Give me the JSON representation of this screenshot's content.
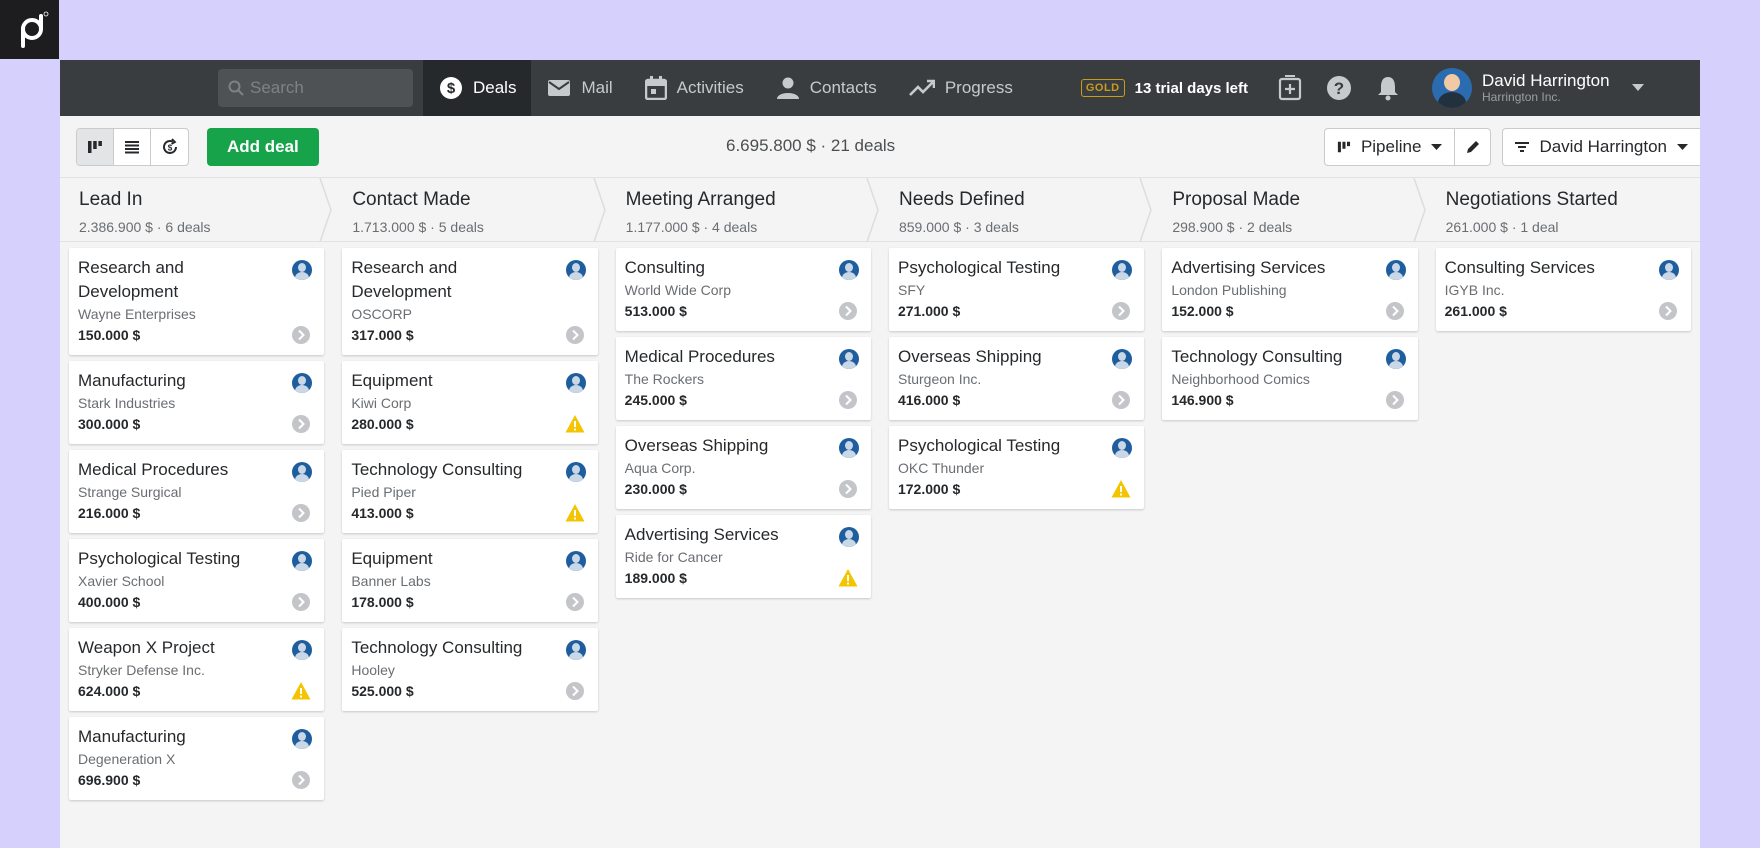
{
  "nav": {
    "search_placeholder": "Search",
    "tabs": [
      {
        "label": "Deals",
        "icon": "dollar-icon"
      },
      {
        "label": "Mail",
        "icon": "mail-icon"
      },
      {
        "label": "Activities",
        "icon": "calendar-icon"
      },
      {
        "label": "Contacts",
        "icon": "person-icon"
      },
      {
        "label": "Progress",
        "icon": "trend-icon"
      }
    ],
    "gold_badge": "GOLD",
    "trial_text": "13 trial days left",
    "user_name": "David Harrington",
    "user_company": "Harrington Inc."
  },
  "toolbar": {
    "add_deal": "Add deal",
    "summary": "6.695.800 $ · 21 deals",
    "pipeline_label": "Pipeline",
    "owner_filter": "David Harrington"
  },
  "colors": {
    "accent_green": "#17a34a",
    "nav_bg": "#3a3d40",
    "warning": "#f5c400",
    "background": "#d5d0fc"
  },
  "stages": [
    {
      "name": "Lead In",
      "summary": "2.386.900 $ · 6 deals",
      "deals": [
        {
          "title": "Research and Development",
          "org": "Wayne Enterprises",
          "value": "150.000 $",
          "status": "ok"
        },
        {
          "title": "Manufacturing",
          "org": "Stark Industries",
          "value": "300.000 $",
          "status": "ok"
        },
        {
          "title": "Medical Procedures",
          "org": "Strange Surgical",
          "value": "216.000 $",
          "status": "ok"
        },
        {
          "title": "Psychological Testing",
          "org": "Xavier School",
          "value": "400.000 $",
          "status": "ok"
        },
        {
          "title": "Weapon X Project",
          "org": "Stryker Defense Inc.",
          "value": "624.000 $",
          "status": "warning"
        },
        {
          "title": "Manufacturing",
          "org": "Degeneration X",
          "value": "696.900 $",
          "status": "ok"
        }
      ]
    },
    {
      "name": "Contact Made",
      "summary": "1.713.000 $ · 5 deals",
      "deals": [
        {
          "title": "Research and Development",
          "org": "OSCORP",
          "value": "317.000 $",
          "status": "ok"
        },
        {
          "title": "Equipment",
          "org": "Kiwi Corp",
          "value": "280.000 $",
          "status": "warning"
        },
        {
          "title": "Technology Consulting",
          "org": "Pied Piper",
          "value": "413.000 $",
          "status": "warning"
        },
        {
          "title": "Equipment",
          "org": "Banner Labs",
          "value": "178.000 $",
          "status": "ok"
        },
        {
          "title": "Technology Consulting",
          "org": "Hooley",
          "value": "525.000 $",
          "status": "ok"
        }
      ]
    },
    {
      "name": "Meeting Arranged",
      "summary": "1.177.000 $ · 4 deals",
      "deals": [
        {
          "title": "Consulting",
          "org": "World Wide Corp",
          "value": "513.000 $",
          "status": "ok"
        },
        {
          "title": "Medical Procedures",
          "org": "The Rockers",
          "value": "245.000 $",
          "status": "ok"
        },
        {
          "title": "Overseas Shipping",
          "org": "Aqua Corp.",
          "value": "230.000 $",
          "status": "ok"
        },
        {
          "title": "Advertising Services",
          "org": "Ride for Cancer",
          "value": "189.000 $",
          "status": "warning"
        }
      ]
    },
    {
      "name": "Needs Defined",
      "summary": "859.000 $ · 3 deals",
      "deals": [
        {
          "title": "Psychological Testing",
          "org": "SFY",
          "value": "271.000 $",
          "status": "ok"
        },
        {
          "title": "Overseas Shipping",
          "org": "Sturgeon Inc.",
          "value": "416.000 $",
          "status": "ok"
        },
        {
          "title": "Psychological Testing",
          "org": "OKC Thunder",
          "value": "172.000 $",
          "status": "warning"
        }
      ]
    },
    {
      "name": "Proposal Made",
      "summary": "298.900 $ · 2 deals",
      "deals": [
        {
          "title": "Advertising Services",
          "org": "London Publishing",
          "value": "152.000 $",
          "status": "ok"
        },
        {
          "title": "Technology Consulting",
          "org": "Neighborhood Comics",
          "value": "146.900 $",
          "status": "ok"
        }
      ]
    },
    {
      "name": "Negotiations Started",
      "summary": "261.000 $ · 1 deal",
      "deals": [
        {
          "title": "Consulting Services",
          "org": "IGYB Inc.",
          "value": "261.000 $",
          "status": "ok"
        }
      ]
    }
  ]
}
